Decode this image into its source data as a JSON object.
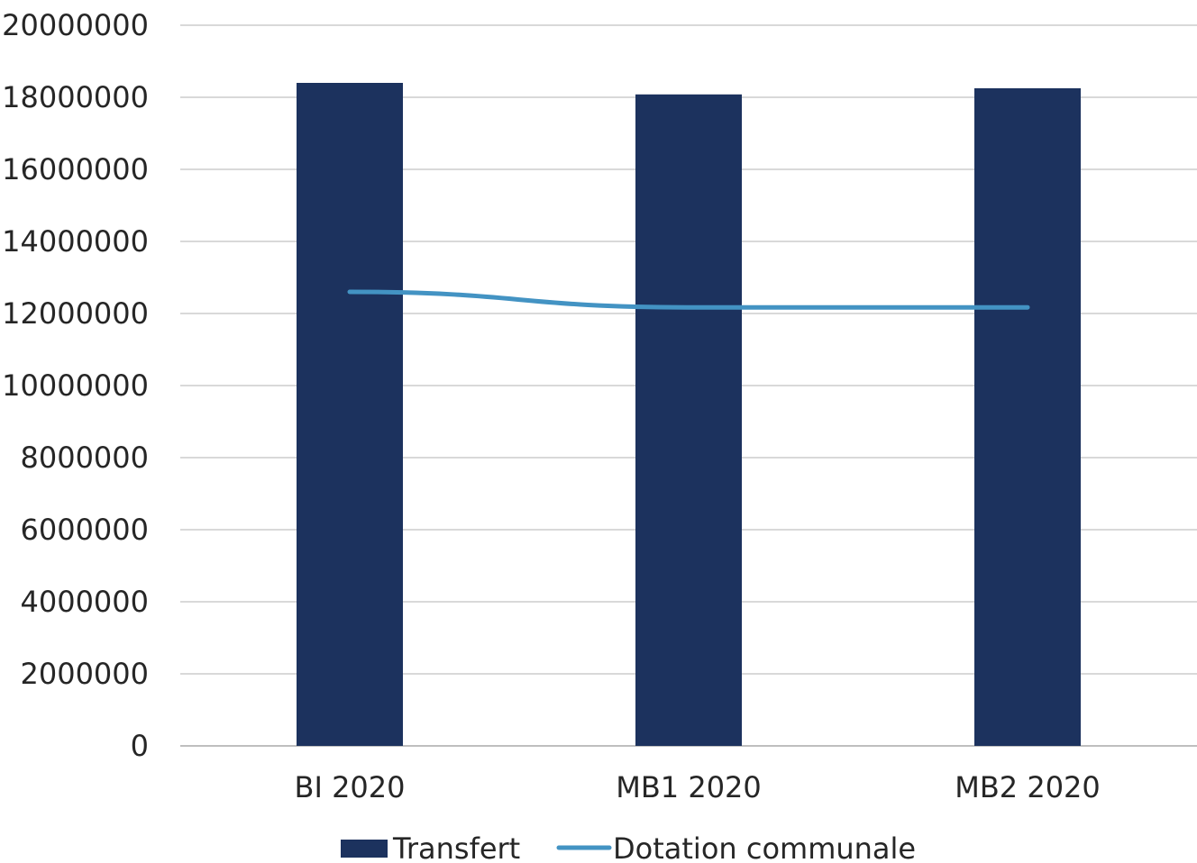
{
  "chart_data": {
    "type": "bar",
    "title": "",
    "xlabel": "",
    "ylabel": "",
    "categories": [
      "BI 2020",
      "MB1 2020",
      "MB2 2020"
    ],
    "ylim": [
      0,
      20000000
    ],
    "yticks": [
      0,
      2000000,
      4000000,
      6000000,
      8000000,
      10000000,
      12000000,
      14000000,
      16000000,
      18000000,
      20000000
    ],
    "grid": true,
    "legend_position": "bottom",
    "series": [
      {
        "name": "Transfert",
        "kind": "bar",
        "color": "#1c325e",
        "values": [
          18400000,
          18080000,
          18250000
        ]
      },
      {
        "name": "Dotation communale",
        "kind": "line",
        "color": "#4393c3",
        "values": [
          12600000,
          12170000,
          12170000
        ]
      }
    ]
  }
}
